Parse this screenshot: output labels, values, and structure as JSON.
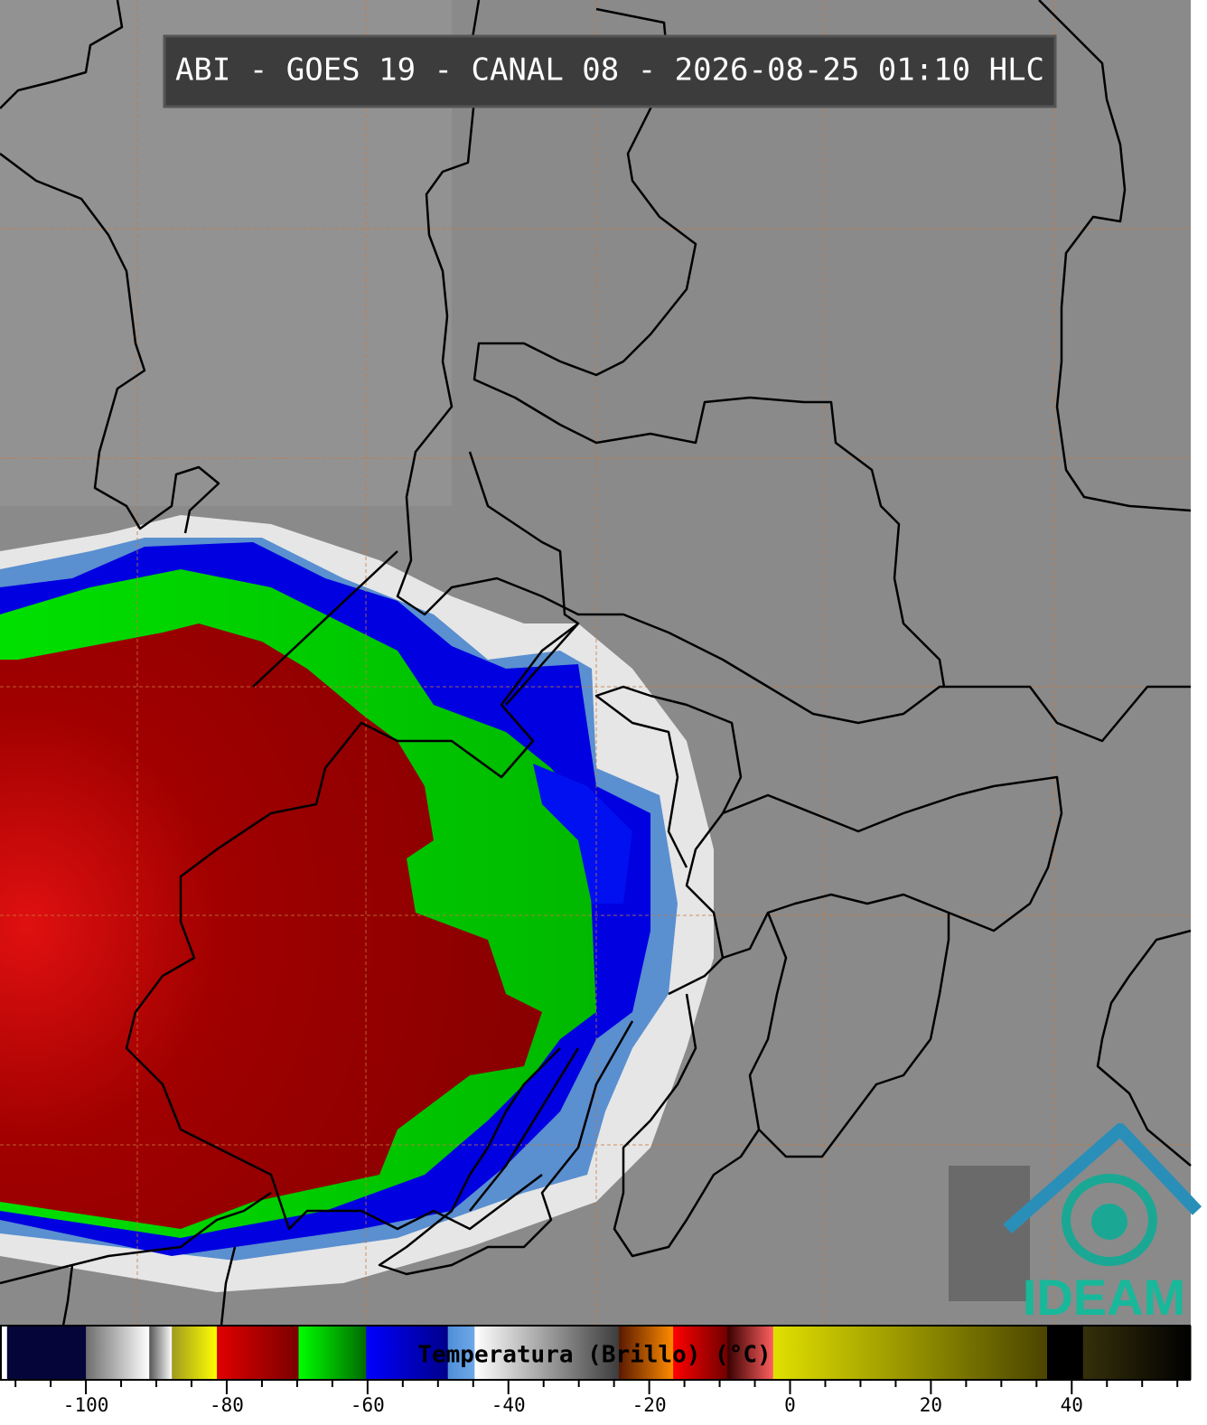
{
  "header": {
    "title": "ABI - GOES 19 - CANAL 08 - 2026-08-25 01:10 HLC"
  },
  "colorbar": {
    "label": "Temperatura (Brillo) (°C)",
    "range": [
      -112.2,
      56.9
    ],
    "ticks": [
      -100,
      -80,
      -60,
      -40,
      -20,
      0,
      20,
      40
    ],
    "minor_ticks": [
      -110,
      -105,
      -95,
      -90,
      -85,
      -75,
      -70,
      -65,
      -55,
      -50,
      -45,
      -35,
      -30,
      -25,
      -15,
      -10,
      -5,
      5,
      10,
      15,
      25,
      30,
      35,
      45,
      50,
      55
    ],
    "segments": [
      {
        "start": -112.2,
        "end": -111.2,
        "colors": [
          "#ffffff",
          "#ffffff"
        ]
      },
      {
        "start": -111.2,
        "end": -100,
        "colors": [
          "#05053a",
          "#05053a"
        ]
      },
      {
        "start": -100,
        "end": -91,
        "colors": [
          "#6e6e6e",
          "#ffffff"
        ]
      },
      {
        "start": -91,
        "end": -87.8,
        "colors": [
          "#555555",
          "#ffffff"
        ]
      },
      {
        "start": -87.8,
        "end": -81.4,
        "colors": [
          "#a09a20",
          "#ffff00"
        ]
      },
      {
        "start": -81.4,
        "end": -69.8,
        "colors": [
          "#e00000",
          "#7a0000"
        ]
      },
      {
        "start": -69.8,
        "end": -60.2,
        "colors": [
          "#00ff00",
          "#006a00"
        ]
      },
      {
        "start": -60.2,
        "end": -48.6,
        "colors": [
          "#0000ff",
          "#00008a"
        ]
      },
      {
        "start": -48.6,
        "end": -44.8,
        "colors": [
          "#4f8fd8",
          "#6fa8e8"
        ]
      },
      {
        "start": -44.8,
        "end": -24.3,
        "colors": [
          "#ffffff",
          "#3c3c3c"
        ]
      },
      {
        "start": -24.3,
        "end": -16.6,
        "colors": [
          "#5a1a00",
          "#ff8c00"
        ]
      },
      {
        "start": -16.6,
        "end": -8.9,
        "colors": [
          "#ff0000",
          "#700000"
        ]
      },
      {
        "start": -8.9,
        "end": -2.4,
        "colors": [
          "#3a0000",
          "#ff6060"
        ]
      },
      {
        "start": -2.4,
        "end": 36.5,
        "colors": [
          "#e0e000",
          "#4a4400"
        ]
      },
      {
        "start": 36.5,
        "end": 41.6,
        "colors": [
          "#000000",
          "#000000"
        ]
      },
      {
        "start": 41.6,
        "end": 56.9,
        "colors": [
          "#35300a",
          "#000000"
        ]
      }
    ]
  },
  "logo": {
    "text": "IDEAM"
  }
}
